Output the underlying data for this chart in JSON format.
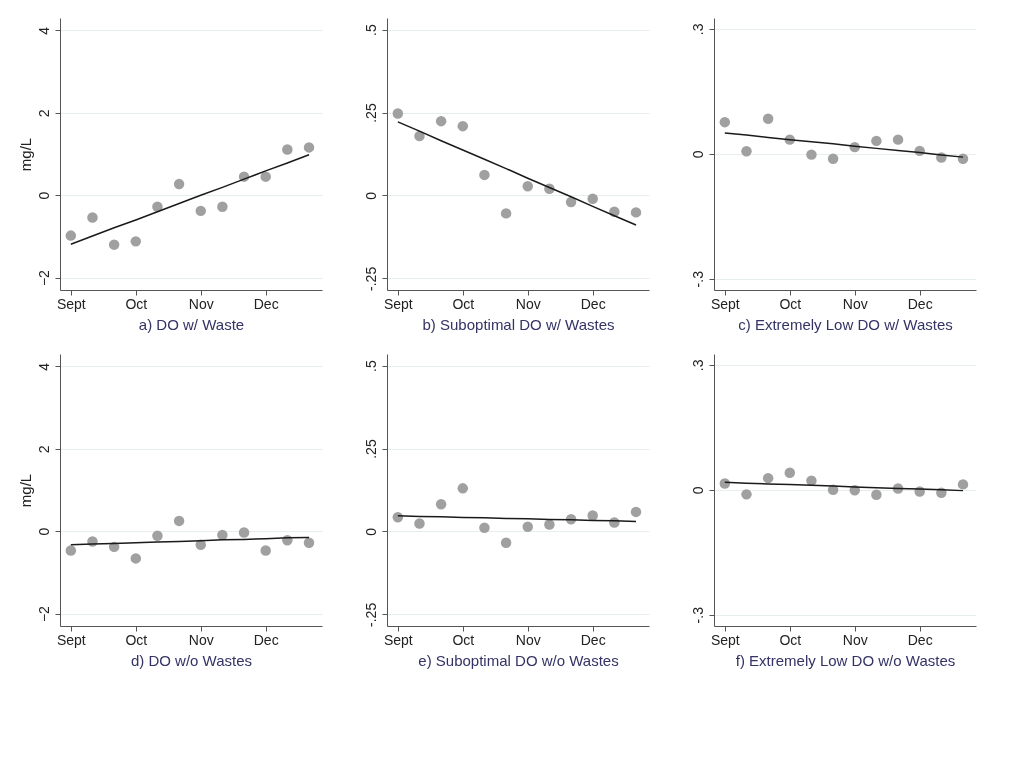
{
  "chart_data": [
    {
      "type": "scatter",
      "xlabel": "a) DO w/ Waste",
      "ylabel": "mg/L",
      "categories": [
        "Sept",
        null,
        null,
        "Oct",
        null,
        null,
        "Nov",
        null,
        null,
        "Dec",
        null,
        null
      ],
      "ylim": [
        -2.3,
        4.3
      ],
      "yticks": [
        -2,
        0,
        2,
        4
      ],
      "grid": "y",
      "series": [
        {
          "marker": "circle",
          "color": "#a0a0a0",
          "values": [
            -0.98,
            -0.54,
            -1.2,
            -1.12,
            -0.28,
            0.27,
            -0.38,
            -0.28,
            0.45,
            0.45,
            1.11,
            1.16
          ]
        },
        {
          "type": "line",
          "line_style": "solid",
          "color": "#1a1a1a",
          "values": [
            -1.19,
            -0.99,
            -0.79,
            -0.6,
            -0.4,
            -0.2,
            0,
            0.19,
            0.39,
            0.59,
            0.78,
            0.98
          ]
        }
      ]
    },
    {
      "type": "scatter",
      "xlabel": "b) Suboptimal DO w/ Wastes",
      "categories": [
        "Sept",
        null,
        null,
        "Oct",
        null,
        null,
        "Nov",
        null,
        null,
        "Dec",
        null,
        null
      ],
      "ylim": [
        -0.285,
        0.535
      ],
      "yticks": [
        {
          "value": -0.25,
          "label": "-.25"
        },
        0,
        {
          "value": 0.25,
          "label": ".25"
        },
        {
          "value": 0.5,
          "label": ".5"
        }
      ],
      "grid": "y",
      "series": [
        {
          "marker": "circle",
          "color": "#a0a0a0",
          "values": [
            0.247,
            0.179,
            0.224,
            0.209,
            0.062,
            -0.054,
            0.028,
            0.02,
            -0.02,
            -0.01,
            -0.049,
            -0.051
          ]
        },
        {
          "type": "line",
          "line_style": "solid",
          "color": "#1a1a1a",
          "values": [
            0.222,
            0.194,
            0.165,
            0.137,
            0.109,
            0.081,
            0.052,
            0.024,
            -0.004,
            -0.033,
            -0.061,
            -0.089
          ]
        }
      ]
    },
    {
      "type": "scatter",
      "xlabel": "c) Extremely Low  DO w/ Wastes",
      "categories": [
        "Sept",
        null,
        null,
        "Oct",
        null,
        null,
        "Nov",
        null,
        null,
        "Dec",
        null,
        null
      ],
      "ylim": [
        -0.327,
        0.326
      ],
      "yticks": [
        {
          "value": -0.3,
          "label": "-.3"
        },
        0,
        {
          "value": 0.3,
          "label": ".3"
        }
      ],
      "grid": "y",
      "series": [
        {
          "marker": "circle",
          "color": "#a0a0a0",
          "values": [
            0.076,
            0.006,
            0.084,
            0.034,
            -0.002,
            -0.012,
            0.016,
            0.031,
            0.034,
            0.007,
            -0.009,
            -0.012
          ]
        },
        {
          "type": "line",
          "line_style": "solid",
          "color": "#1a1a1a",
          "values": [
            0.05,
            0.045,
            0.039,
            0.034,
            0.029,
            0.024,
            0.018,
            0.013,
            0.008,
            0.003,
            -0.003,
            -0.008
          ]
        }
      ]
    },
    {
      "type": "scatter",
      "xlabel": "d) DO w/o Wastes",
      "ylabel": "mg/L",
      "categories": [
        "Sept",
        null,
        null,
        "Oct",
        null,
        null,
        "Nov",
        null,
        null,
        "Dec",
        null,
        null
      ],
      "ylim": [
        -2.3,
        4.3
      ],
      "yticks": [
        -2,
        0,
        2,
        4
      ],
      "grid": "y",
      "series": [
        {
          "marker": "circle",
          "color": "#a0a0a0",
          "values": [
            -0.47,
            -0.25,
            -0.38,
            -0.66,
            -0.11,
            0.25,
            -0.33,
            -0.09,
            -0.03,
            -0.47,
            -0.22,
            -0.28
          ]
        },
        {
          "type": "line",
          "line_style": "solid",
          "color": "#1a1a1a",
          "values": [
            -0.33,
            -0.31,
            -0.3,
            -0.28,
            -0.26,
            -0.25,
            -0.23,
            -0.21,
            -0.2,
            -0.18,
            -0.16,
            -0.15
          ]
        }
      ]
    },
    {
      "type": "scatter",
      "xlabel": "e) Suboptimal DO w/o Wastes",
      "categories": [
        "Sept",
        null,
        null,
        "Oct",
        null,
        null,
        "Nov",
        null,
        null,
        "Dec",
        null,
        null
      ],
      "ylim": [
        -0.285,
        0.535
      ],
      "yticks": [
        {
          "value": -0.25,
          "label": "-.25"
        },
        0,
        {
          "value": 0.25,
          "label": ".25"
        },
        {
          "value": 0.5,
          "label": ".5"
        }
      ],
      "grid": "y",
      "series": [
        {
          "marker": "circle",
          "color": "#a0a0a0",
          "values": [
            0.043,
            0.024,
            0.082,
            0.13,
            0.011,
            -0.034,
            0.014,
            0.021,
            0.037,
            0.048,
            0.027,
            0.059
          ]
        },
        {
          "type": "line",
          "line_style": "solid",
          "color": "#1a1a1a",
          "values": [
            0.047,
            0.045,
            0.044,
            0.042,
            0.041,
            0.039,
            0.038,
            0.036,
            0.035,
            0.033,
            0.032,
            0.03
          ]
        }
      ]
    },
    {
      "type": "scatter",
      "xlabel": "f) Extremely Low  DO w/o Wastes",
      "categories": [
        "Sept",
        null,
        null,
        "Oct",
        null,
        null,
        "Nov",
        null,
        null,
        "Dec",
        null,
        null
      ],
      "ylim": [
        -0.327,
        0.326
      ],
      "yticks": [
        {
          "value": -0.3,
          "label": "-.3"
        },
        0,
        {
          "value": 0.3,
          "label": ".3"
        }
      ],
      "grid": "y",
      "series": [
        {
          "marker": "circle",
          "color": "#a0a0a0",
          "values": [
            0.015,
            -0.011,
            0.028,
            0.041,
            0.022,
            0,
            -0.001,
            -0.012,
            0.003,
            -0.004,
            -0.007,
            0.013
          ]
        },
        {
          "type": "line",
          "line_style": "solid",
          "color": "#1a1a1a",
          "values": [
            0.018,
            0.016,
            0.014,
            0.013,
            0.011,
            0.009,
            0.007,
            0.005,
            0.003,
            0.002,
            0,
            -0.002
          ]
        }
      ]
    }
  ]
}
